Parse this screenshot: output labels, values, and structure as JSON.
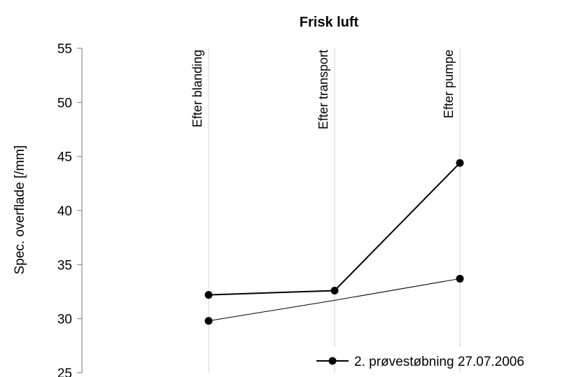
{
  "chart_data": {
    "type": "line",
    "title": "Frisk luft",
    "xlabel": "",
    "ylabel": "Spec. overflade [/mm]",
    "categories": [
      "Efter blanding",
      "Efter transport",
      "Efter pumpe"
    ],
    "ylim": [
      25,
      55
    ],
    "yticks": [
      25,
      30,
      35,
      40,
      45,
      50,
      55
    ],
    "grid": "vertical gridlines at categories",
    "legend_position": "bottom-right",
    "series": [
      {
        "name": "2. prøvestøbning 27.07.2006",
        "values": [
          32.2,
          32.6,
          44.4
        ],
        "stroke_width": 2,
        "color": "#000000"
      },
      {
        "name": "",
        "values": [
          29.8,
          31.7,
          33.7
        ],
        "stroke_width": 1,
        "color": "#000000",
        "markers_on": [
          0,
          2
        ]
      }
    ]
  }
}
